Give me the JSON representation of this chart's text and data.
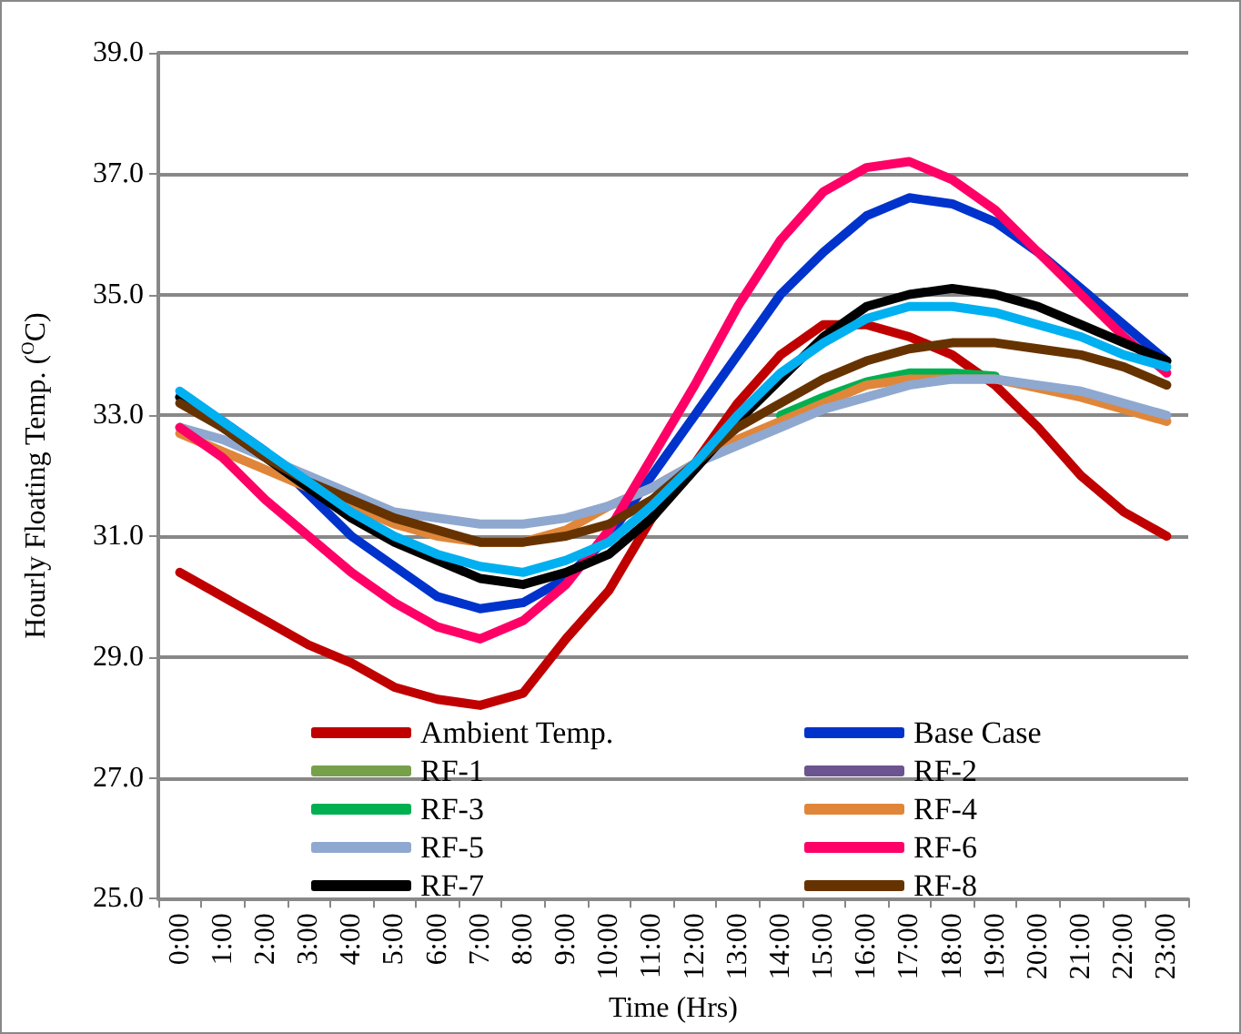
{
  "chart_data": {
    "type": "line",
    "xlabel": "Time (Hrs)",
    "ylabel": "Hourly Floating Temp. ($^{O}$C)",
    "categories": [
      "0:00",
      "1:00",
      "2:00",
      "3:00",
      "4:00",
      "5:00",
      "6:00",
      "7:00",
      "8:00",
      "9:00",
      "10:00",
      "11:00",
      "12:00",
      "13:00",
      "14:00",
      "15:00",
      "16:00",
      "17:00",
      "18:00",
      "19:00",
      "20:00",
      "21:00",
      "22:00",
      "23:00"
    ],
    "series": [
      {
        "name": "Ambient Temp.",
        "color": "#c00000",
        "values": [
          30.4,
          30.0,
          29.6,
          29.2,
          28.9,
          28.5,
          28.3,
          28.2,
          28.4,
          29.3,
          30.1,
          31.3,
          32.2,
          33.2,
          34.0,
          34.5,
          34.5,
          34.3,
          34.0,
          33.5,
          32.8,
          32.0,
          31.4,
          31.0
        ]
      },
      {
        "name": "Base Case",
        "color": "#0033cc",
        "values": [
          33.3,
          32.9,
          32.4,
          31.7,
          31.0,
          30.5,
          30.0,
          29.8,
          29.9,
          30.3,
          31.0,
          32.0,
          33.0,
          34.0,
          35.0,
          35.7,
          36.3,
          36.6,
          36.5,
          36.2,
          35.7,
          35.1,
          34.5,
          33.9
        ]
      },
      {
        "name": "RF-1",
        "color": "#77a04a",
        "values": [
          null,
          null,
          null,
          null,
          null,
          null,
          null,
          null,
          null,
          null,
          null,
          null,
          null,
          null,
          null,
          null,
          null,
          null,
          null,
          null,
          null,
          null,
          null,
          null
        ]
      },
      {
        "name": "RF-2",
        "color": "#6b548f",
        "values": [
          null,
          null,
          null,
          null,
          null,
          null,
          null,
          null,
          null,
          null,
          null,
          null,
          null,
          null,
          null,
          null,
          null,
          null,
          null,
          null,
          null,
          null,
          null,
          null
        ]
      },
      {
        "name": "RF-3",
        "color": "#00b050",
        "values": [
          null,
          null,
          null,
          null,
          null,
          null,
          null,
          null,
          null,
          null,
          null,
          null,
          null,
          null,
          33.0,
          33.3,
          33.55,
          33.7,
          33.7,
          33.65,
          null,
          null,
          null,
          null
        ]
      },
      {
        "name": "RF-4",
        "color": "#e0863a",
        "values": [
          32.7,
          32.4,
          32.1,
          31.8,
          31.5,
          31.2,
          31.0,
          30.9,
          30.9,
          31.1,
          31.5,
          31.8,
          32.2,
          32.6,
          32.9,
          33.2,
          33.5,
          33.6,
          33.6,
          33.6,
          33.45,
          33.3,
          33.1,
          32.9
        ]
      },
      {
        "name": "RF-5",
        "color": "#8fa8d0",
        "values": [
          32.8,
          32.6,
          32.3,
          32.0,
          31.7,
          31.4,
          31.3,
          31.2,
          31.2,
          31.3,
          31.5,
          31.8,
          32.2,
          32.5,
          32.8,
          33.1,
          33.3,
          33.5,
          33.6,
          33.6,
          33.5,
          33.4,
          33.2,
          33.0
        ]
      },
      {
        "name": "RF-6",
        "color": "#ff0066",
        "values": [
          32.8,
          32.3,
          31.6,
          31.0,
          30.4,
          29.9,
          29.5,
          29.3,
          29.6,
          30.2,
          31.1,
          32.3,
          33.5,
          34.8,
          35.9,
          36.7,
          37.1,
          37.2,
          36.9,
          36.4,
          35.7,
          35.0,
          34.3,
          33.7
        ]
      },
      {
        "name": "RF-7",
        "color": "#000000",
        "values": [
          33.3,
          32.8,
          32.3,
          31.8,
          31.3,
          30.9,
          30.6,
          30.3,
          30.2,
          30.4,
          30.7,
          31.3,
          32.1,
          32.9,
          33.6,
          34.3,
          34.8,
          35.0,
          35.1,
          35.0,
          34.8,
          34.5,
          34.2,
          33.9
        ]
      },
      {
        "name": "RF-8",
        "color": "#663300",
        "values": [
          33.2,
          32.8,
          32.3,
          31.9,
          31.6,
          31.3,
          31.1,
          30.9,
          30.9,
          31.0,
          31.2,
          31.6,
          32.2,
          32.8,
          33.2,
          33.6,
          33.9,
          34.1,
          34.2,
          34.2,
          34.1,
          34.0,
          33.8,
          33.5
        ]
      },
      {
        "color": "#00b0f0",
        "values": [
          33.4,
          32.9,
          32.4,
          31.9,
          31.4,
          31.0,
          30.7,
          30.5,
          30.4,
          30.6,
          30.9,
          31.5,
          32.2,
          33.0,
          33.7,
          34.2,
          34.6,
          34.8,
          34.8,
          34.7,
          34.5,
          34.3,
          34.0,
          33.8
        ]
      }
    ],
    "ylim": [
      25,
      39
    ],
    "yticks": [
      {
        "value": 25,
        "label": "25.0"
      },
      {
        "value": 27,
        "label": "27.0"
      },
      {
        "value": 29,
        "label": "29.0"
      },
      {
        "value": 31,
        "label": "31.0"
      },
      {
        "value": 33,
        "label": "33.0"
      },
      {
        "value": 35,
        "label": "35.0"
      },
      {
        "value": 37,
        "label": "37.0"
      },
      {
        "value": 39,
        "label": "39.0"
      }
    ],
    "grid": "y",
    "legend": "bottom",
    "marker": "none",
    "line_style": "solid"
  }
}
